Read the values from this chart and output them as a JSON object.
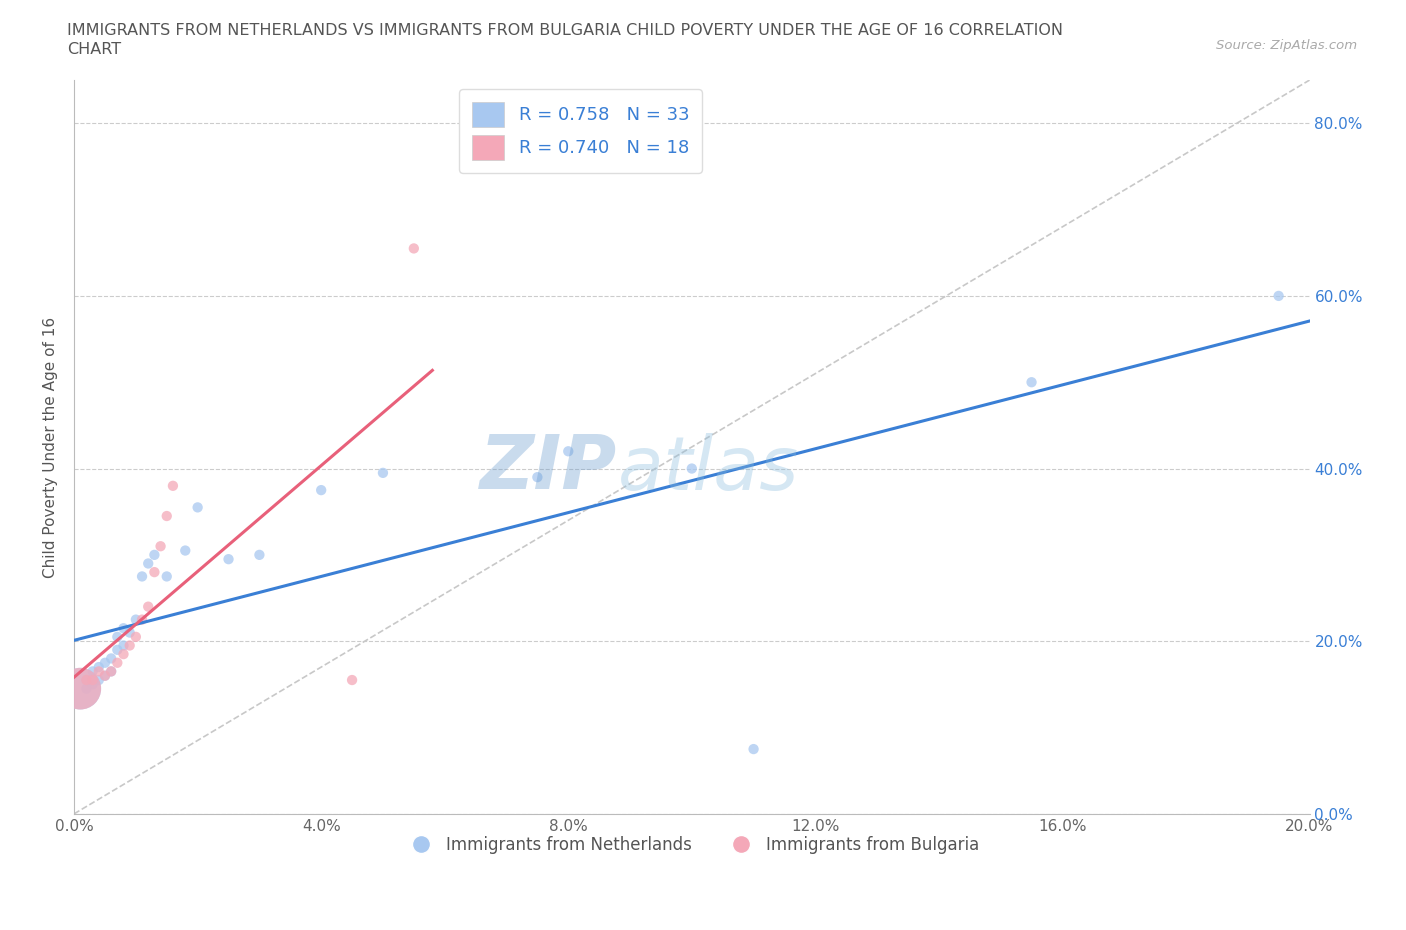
{
  "title_line1": "IMMIGRANTS FROM NETHERLANDS VS IMMIGRANTS FROM BULGARIA CHILD POVERTY UNDER THE AGE OF 16 CORRELATION",
  "title_line2": "CHART",
  "source": "Source: ZipAtlas.com",
  "ylabel": "Child Poverty Under the Age of 16",
  "xlim": [
    0.0,
    0.2
  ],
  "ylim": [
    0.0,
    0.85
  ],
  "xticks": [
    0.0,
    0.04,
    0.08,
    0.12,
    0.16,
    0.2
  ],
  "ytick_vals": [
    0.0,
    0.2,
    0.4,
    0.6,
    0.8
  ],
  "ytick_labels": [
    "0.0%",
    "20.0%",
    "40.0%",
    "60.0%",
    "80.0%"
  ],
  "netherlands_color": "#a8c8f0",
  "bulgaria_color": "#f4a8b8",
  "netherlands_line_color": "#3a7fd5",
  "bulgaria_line_color": "#e8607a",
  "diagonal_color": "#c8c8c8",
  "watermark_zip": "ZIP",
  "watermark_atlas": "atlas",
  "netherlands_points": [
    [
      0.001,
      0.145
    ],
    [
      0.002,
      0.145
    ],
    [
      0.002,
      0.155
    ],
    [
      0.003,
      0.15
    ],
    [
      0.003,
      0.165
    ],
    [
      0.004,
      0.155
    ],
    [
      0.004,
      0.17
    ],
    [
      0.005,
      0.16
    ],
    [
      0.005,
      0.175
    ],
    [
      0.006,
      0.165
    ],
    [
      0.006,
      0.18
    ],
    [
      0.007,
      0.19
    ],
    [
      0.007,
      0.205
    ],
    [
      0.008,
      0.195
    ],
    [
      0.008,
      0.215
    ],
    [
      0.009,
      0.21
    ],
    [
      0.01,
      0.225
    ],
    [
      0.011,
      0.275
    ],
    [
      0.012,
      0.29
    ],
    [
      0.013,
      0.3
    ],
    [
      0.015,
      0.275
    ],
    [
      0.018,
      0.305
    ],
    [
      0.02,
      0.355
    ],
    [
      0.025,
      0.295
    ],
    [
      0.03,
      0.3
    ],
    [
      0.04,
      0.375
    ],
    [
      0.05,
      0.395
    ],
    [
      0.075,
      0.39
    ],
    [
      0.08,
      0.42
    ],
    [
      0.1,
      0.4
    ],
    [
      0.11,
      0.075
    ],
    [
      0.155,
      0.5
    ],
    [
      0.195,
      0.6
    ]
  ],
  "netherlands_sizes": [
    35,
    35,
    35,
    35,
    35,
    35,
    35,
    35,
    35,
    35,
    35,
    35,
    35,
    35,
    35,
    35,
    35,
    35,
    35,
    35,
    35,
    35,
    35,
    35,
    35,
    35,
    35,
    35,
    35,
    35,
    35,
    35,
    35
  ],
  "netherlands_large_idx": 0,
  "netherlands_large_size": 900,
  "bulgaria_points": [
    [
      0.001,
      0.145
    ],
    [
      0.002,
      0.155
    ],
    [
      0.003,
      0.155
    ],
    [
      0.004,
      0.165
    ],
    [
      0.005,
      0.16
    ],
    [
      0.006,
      0.165
    ],
    [
      0.007,
      0.175
    ],
    [
      0.008,
      0.185
    ],
    [
      0.009,
      0.195
    ],
    [
      0.01,
      0.205
    ],
    [
      0.011,
      0.225
    ],
    [
      0.012,
      0.24
    ],
    [
      0.013,
      0.28
    ],
    [
      0.014,
      0.31
    ],
    [
      0.015,
      0.345
    ],
    [
      0.016,
      0.38
    ],
    [
      0.045,
      0.155
    ],
    [
      0.055,
      0.655
    ]
  ],
  "bulgaria_sizes": [
    35,
    35,
    35,
    35,
    35,
    35,
    35,
    35,
    35,
    35,
    35,
    35,
    35,
    35,
    35,
    35,
    35,
    35
  ],
  "bulgaria_large_idx": 0,
  "bulgaria_large_size": 900
}
